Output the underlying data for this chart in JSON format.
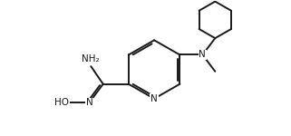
{
  "bg_color": "#ffffff",
  "line_color": "#1a1a1a",
  "text_color": "#1a1a1a",
  "line_width": 1.4,
  "font_size": 7.5,
  "fig_width": 3.21,
  "fig_height": 1.5,
  "dpi": 100,
  "xlim": [
    0,
    10
  ],
  "ylim": [
    0,
    4.7
  ]
}
